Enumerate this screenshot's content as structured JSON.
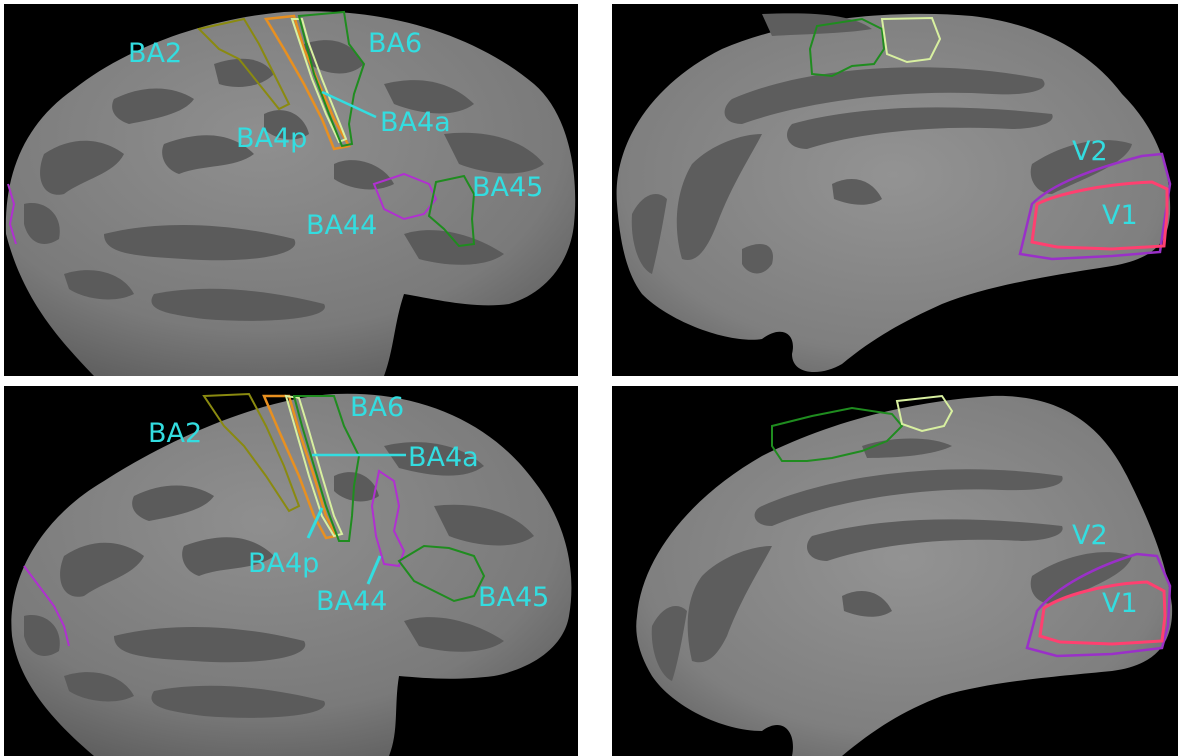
{
  "colors": {
    "label": "#33dde0",
    "ba2": "#8a8a10",
    "ba4p": "#e89020",
    "ba4a": "#d8f0a0",
    "ba6": "#1f8c1f",
    "ba44": "#b030d0",
    "ba45": "#1f8c1f",
    "v1": "#ff4070",
    "v2": "#9a30c8"
  },
  "panels": {
    "top_left": {
      "labels": {
        "ba2": "BA2",
        "ba6": "BA6",
        "ba4a": "BA4a",
        "ba4p": "BA4p",
        "ba44": "BA44",
        "ba45": "BA45"
      }
    },
    "top_right": {
      "labels": {
        "v2": "V2",
        "v1": "V1"
      }
    },
    "bottom_left": {
      "labels": {
        "ba2": "BA2",
        "ba6": "BA6",
        "ba4a": "BA4a",
        "ba4p": "BA4p",
        "ba44": "BA44",
        "ba45": "BA45"
      }
    },
    "bottom_right": {
      "labels": {
        "v2": "V2",
        "v1": "V1"
      }
    }
  }
}
